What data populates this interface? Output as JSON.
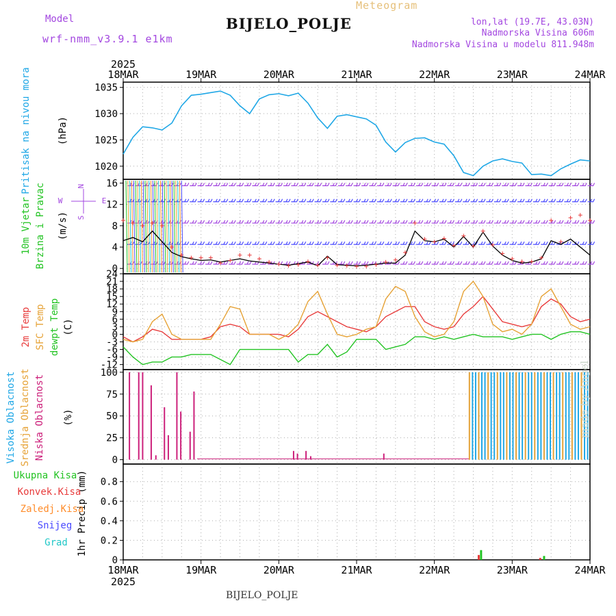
{
  "header": {
    "model_label": "Model",
    "model_name": "wrf-nmm_v3.9.1 e1km",
    "title": "BIJELO_POLJE",
    "subtitle": "Meteogram",
    "coords": "lon,lat (19.7E, 43.03N)",
    "elev": "Nadmorska Visina 606m",
    "elev_model": "Nadmorska Visina u modelu 811.948m",
    "bottom_title": "BIJELO_POLJE",
    "credit": "made by Angel"
  },
  "colors": {
    "pressure": "#1fa7e6",
    "wind": "#000000",
    "wind_label_a": "#22c322",
    "wind_label_b": "#e6a236",
    "t2m": "#e83b3b",
    "sfc": "#e6a236",
    "dewpt": "#22c322",
    "high_cloud": "#1fa7e6",
    "mid_cloud": "#e6a236",
    "low_cloud": "#cc1f7a",
    "model_text": "#a347e0",
    "precip_total": "#22c322",
    "precip_conv": "#e83b3b",
    "precip_strat": "#ff8c2a",
    "snow": "#4b4bff",
    "hail": "#22c8c8"
  },
  "chart_data": [
    {
      "type": "line",
      "panel": "pressure",
      "ylabel_left": "Pritisak na nivou mora",
      "ylabel_unit": "(hPa)",
      "x_days": [
        0,
        0.125,
        0.25,
        0.375,
        0.5,
        0.625,
        0.75,
        0.875,
        1.0,
        1.125,
        1.25,
        1.375,
        1.5,
        1.625,
        1.75,
        1.875,
        2.0,
        2.125,
        2.25,
        2.375,
        2.5,
        2.625,
        2.75,
        2.875,
        3.0,
        3.125,
        3.25,
        3.375,
        3.5,
        3.625,
        3.75,
        3.875,
        4.0,
        4.125,
        4.25,
        4.375,
        4.5,
        4.625,
        4.75,
        4.875,
        5.0,
        5.125,
        5.25,
        5.375,
        5.5,
        5.625,
        5.75,
        5.875,
        6.0
      ],
      "values": [
        1022.3,
        1025.5,
        1027.5,
        1027.3,
        1026.9,
        1028.2,
        1031.5,
        1033.5,
        1033.7,
        1034.0,
        1034.3,
        1033.5,
        1031.5,
        1030.0,
        1032.8,
        1033.6,
        1033.8,
        1033.4,
        1033.9,
        1032.0,
        1029.2,
        1027.2,
        1029.5,
        1029.8,
        1029.4,
        1029.0,
        1027.8,
        1024.6,
        1022.7,
        1024.5,
        1025.3,
        1025.4,
        1024.6,
        1024.2,
        1022.0,
        1018.8,
        1018.2,
        1020.0,
        1021.0,
        1021.4,
        1020.9,
        1020.6,
        1018.4,
        1018.5,
        1018.2,
        1019.5,
        1020.4,
        1021.2,
        1021.0
      ],
      "yticks": [
        1020,
        1025,
        1030,
        1035
      ],
      "ylim": [
        1017.5,
        1036
      ]
    },
    {
      "type": "line",
      "panel": "wind",
      "ylabel_left": "10m Vjetar",
      "ylabel_left2": "Brzina i Pravac",
      "ylabel_unit": "(m/s)",
      "compass": [
        "N",
        "E",
        "W",
        "S"
      ],
      "x_days": [
        0,
        0.125,
        0.25,
        0.375,
        0.5,
        0.625,
        0.75,
        0.875,
        1.0,
        1.125,
        1.25,
        1.375,
        1.5,
        1.625,
        1.75,
        1.875,
        2.0,
        2.125,
        2.25,
        2.375,
        2.5,
        2.625,
        2.75,
        2.875,
        3.0,
        3.125,
        3.25,
        3.375,
        3.5,
        3.625,
        3.75,
        3.875,
        4.0,
        4.125,
        4.25,
        4.375,
        4.5,
        4.625,
        4.75,
        4.875,
        5.0,
        5.125,
        5.25,
        5.375,
        5.5,
        5.625,
        5.75,
        5.875,
        6.0
      ],
      "values": [
        5.2,
        5.8,
        5.0,
        7.0,
        5.0,
        3.0,
        2.2,
        1.8,
        1.5,
        1.6,
        1.2,
        1.5,
        1.8,
        1.4,
        1.2,
        1.0,
        0.8,
        0.6,
        0.9,
        1.2,
        0.5,
        2.3,
        0.7,
        0.6,
        0.5,
        0.6,
        0.8,
        1.0,
        1.0,
        2.5,
        7.0,
        5.2,
        5.0,
        5.5,
        4.0,
        6.0,
        4.0,
        6.8,
        4.2,
        2.5,
        1.5,
        1.0,
        1.2,
        1.8,
        5.2,
        4.5,
        5.5,
        4.0,
        2.5
      ],
      "yticks": [
        0,
        4,
        8,
        12,
        16
      ],
      "ylim": [
        -1,
        16.7
      ]
    },
    {
      "type": "line",
      "panel": "temperature",
      "ylabel_left": "2m Temp",
      "ylabel_left2": "SFC Temp",
      "ylabel_left3": "dewpt Temp",
      "ylabel_unit": "(C)",
      "x_days": [
        0,
        0.125,
        0.25,
        0.375,
        0.5,
        0.625,
        0.75,
        0.875,
        1.0,
        1.125,
        1.25,
        1.375,
        1.5,
        1.625,
        1.75,
        1.875,
        2.0,
        2.125,
        2.25,
        2.375,
        2.5,
        2.625,
        2.75,
        2.875,
        3.0,
        3.125,
        3.25,
        3.375,
        3.5,
        3.625,
        3.75,
        3.875,
        4.0,
        4.125,
        4.25,
        4.375,
        4.5,
        4.625,
        4.75,
        4.875,
        5.0,
        5.125,
        5.25,
        5.375,
        5.5,
        5.625,
        5.75,
        5.875,
        6.0
      ],
      "series": [
        {
          "name": "2m Temp",
          "key": "t2m",
          "values": [
            -1,
            -3,
            -1,
            2,
            1,
            -2,
            -2,
            -2,
            -2,
            -1,
            3,
            4,
            3,
            0,
            0,
            0,
            0,
            -1,
            2,
            7,
            9,
            7,
            5,
            3,
            2,
            1,
            3,
            7,
            9,
            11,
            11,
            5,
            3,
            2,
            3,
            8,
            11,
            15,
            10,
            5,
            4,
            3,
            4,
            11,
            14,
            12,
            7,
            5,
            6
          ]
        },
        {
          "name": "SFC Temp",
          "key": "sfc",
          "values": [
            -2,
            -3,
            -2,
            5,
            8,
            0,
            -2,
            -2,
            -2,
            -2,
            4,
            11,
            10,
            0,
            0,
            0,
            -2,
            0,
            4,
            13,
            17,
            8,
            0,
            -1,
            0,
            2,
            3,
            14,
            19,
            17,
            7,
            1,
            -1,
            0,
            5,
            17,
            21,
            15,
            4,
            1,
            2,
            0,
            4,
            15,
            18,
            11,
            4,
            2,
            3
          ]
        },
        {
          "name": "dewpt Temp",
          "key": "dewpt",
          "values": [
            -5,
            -9,
            -12,
            -11,
            -11,
            -9,
            -9,
            -8,
            -8,
            -8,
            -10,
            -12,
            -6,
            -6,
            -6,
            -6,
            -6,
            -6,
            -11,
            -8,
            -8,
            -4,
            -9,
            -7,
            -2,
            -2,
            -2,
            -6,
            -5,
            -4,
            -1,
            -1,
            -2,
            -1,
            -2,
            -1,
            0,
            -1,
            -1,
            -1,
            -2,
            -1,
            0,
            0,
            -2,
            0,
            1,
            1,
            0
          ]
        }
      ],
      "yticks": [
        -12,
        -9,
        -6,
        -3,
        0,
        3,
        6,
        9,
        12,
        15,
        18,
        21,
        24
      ],
      "ylim": [
        -14,
        24
      ]
    },
    {
      "type": "bar",
      "panel": "clouds",
      "ylabel_left": "Visoka Oblacnost",
      "ylabel_left2": "Srednja Oblacnost",
      "ylabel_left3": "Niska Oblacnost",
      "ylabel_unit": "(%)",
      "low_cloud": [
        [
          0.08,
          100
        ],
        [
          0.2,
          100
        ],
        [
          0.25,
          100
        ],
        [
          0.36,
          85
        ],
        [
          0.42,
          5
        ],
        [
          0.53,
          60
        ],
        [
          0.58,
          28
        ],
        [
          0.69,
          100
        ],
        [
          0.74,
          55
        ],
        [
          0.86,
          32
        ],
        [
          0.91,
          78
        ],
        [
          2.19,
          10
        ],
        [
          2.24,
          7
        ],
        [
          2.35,
          10
        ],
        [
          2.41,
          4
        ],
        [
          3.35,
          7
        ]
      ],
      "high_from_day": 4.45,
      "high_to_day": 6.0,
      "yticks": [
        0,
        25,
        50,
        75,
        100
      ],
      "ylim": [
        -5,
        103
      ]
    },
    {
      "type": "bar",
      "panel": "precip",
      "ylabel_unit": "1hr Precip (mm)",
      "legend": [
        "Ukupna Kisa",
        "Konvek.Kisa",
        "Zaledj.Kisa",
        "Snijeg",
        "Grad"
      ],
      "bars": [
        [
          4.57,
          0.05,
          "precip_conv"
        ],
        [
          4.6,
          0.1,
          "precip_total"
        ],
        [
          5.36,
          0.02,
          "precip_conv"
        ],
        [
          5.41,
          0.04,
          "precip_total"
        ]
      ],
      "yticks": [
        0,
        0.2,
        0.4,
        0.6,
        0.8
      ],
      "ylim": [
        0,
        0.98
      ]
    }
  ],
  "x_axis": {
    "year": "2025",
    "labels": [
      "18MAR",
      "19MAR",
      "20MAR",
      "21MAR",
      "22MAR",
      "23MAR",
      "24MAR"
    ]
  }
}
